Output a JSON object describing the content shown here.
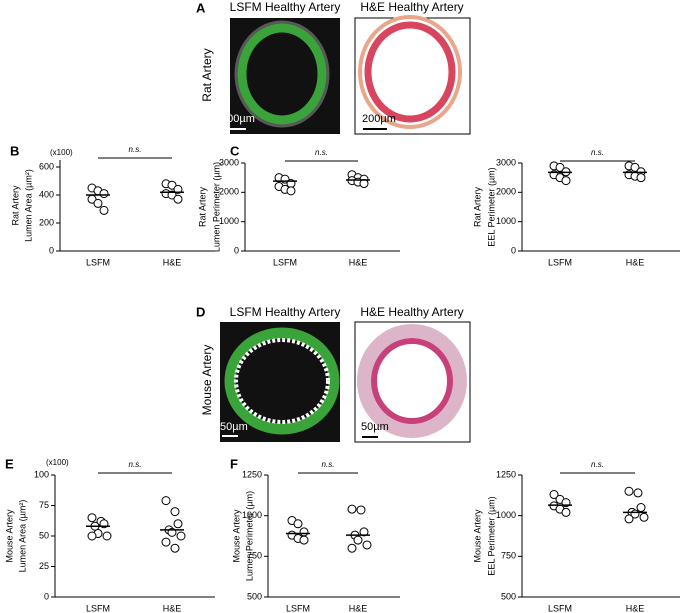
{
  "image_panels": [
    {
      "letter": "A",
      "row_label": "Rat Artery",
      "titles": [
        "LSFM Healthy Artery",
        "H&E Healthy Artery"
      ],
      "scale_bar": "200µm"
    },
    {
      "letter": "D",
      "row_label": "Mouse Artery",
      "titles": [
        "LSFM Healthy Artery",
        "H&E Healthy Artery"
      ],
      "scale_bar": "50µm"
    }
  ],
  "chart_data": [
    {
      "type": "dot",
      "panel": "B",
      "ylabel": [
        "Rat Artery",
        "Lumen Area (µm²)"
      ],
      "y_multiplier": "(x100)",
      "annotation": "n.s.",
      "categories": [
        "LSFM",
        "H&E"
      ],
      "groups": [
        {
          "values": [
            450,
            430,
            410,
            370,
            340,
            290
          ],
          "mean": 400
        },
        {
          "values": [
            480,
            470,
            440,
            410,
            400,
            370
          ],
          "mean": 420
        }
      ],
      "ylim": [
        0,
        650
      ],
      "yticks": [
        0,
        200,
        400,
        600
      ]
    },
    {
      "type": "dot",
      "panel": "C",
      "ylabel": [
        "Rat Artery",
        "Lumen Perimeter (µm)"
      ],
      "annotation": "n.s.",
      "categories": [
        "LSFM",
        "H&E"
      ],
      "groups": [
        {
          "values": [
            2500,
            2450,
            2300,
            2200,
            2100,
            2050
          ],
          "mean": 2380
        },
        {
          "values": [
            2600,
            2500,
            2450,
            2400,
            2350,
            2300
          ],
          "mean": 2420
        }
      ],
      "ylim": [
        0,
        3000
      ],
      "yticks": [
        0,
        1000,
        2000,
        3000
      ]
    },
    {
      "type": "dot",
      "ylabel": [
        "Rat Artery",
        "EEL Perimeter (µm)"
      ],
      "annotation": "n.s.",
      "categories": [
        "LSFM",
        "H&E"
      ],
      "groups": [
        {
          "values": [
            2900,
            2850,
            2700,
            2600,
            2500,
            2400
          ],
          "mean": 2680
        },
        {
          "values": [
            2900,
            2850,
            2700,
            2600,
            2550,
            2500
          ],
          "mean": 2680
        }
      ],
      "ylim": [
        0,
        3000
      ],
      "yticks": [
        0,
        1000,
        2000,
        3000
      ]
    },
    {
      "type": "dot",
      "panel": "E",
      "ylabel": [
        "Mouse Artery",
        "Lumen Area (µm²)"
      ],
      "y_multiplier": "(x100)",
      "annotation": "n.s.",
      "categories": [
        "LSFM",
        "H&E"
      ],
      "groups": [
        {
          "values": [
            65,
            62,
            60,
            58,
            52,
            50,
            50
          ],
          "mean": 58
        },
        {
          "values": [
            79,
            70,
            60,
            55,
            53,
            50,
            45,
            40
          ],
          "mean": 55
        }
      ],
      "ylim": [
        0,
        100
      ],
      "yticks": [
        0,
        25,
        50,
        75,
        100
      ]
    },
    {
      "type": "dot",
      "panel": "F",
      "ylabel": [
        "Mouse Artery",
        "Lumen Perimeter (µm)"
      ],
      "annotation": "n.s.",
      "categories": [
        "LSFM",
        "H&E"
      ],
      "groups": [
        {
          "values": [
            970,
            950,
            900,
            880,
            860,
            850
          ],
          "mean": 890
        },
        {
          "values": [
            1040,
            1035,
            900,
            880,
            850,
            820,
            800
          ],
          "mean": 880
        }
      ],
      "ylim": [
        500,
        1250
      ],
      "yticks": [
        500,
        750,
        1000,
        1250
      ]
    },
    {
      "type": "dot",
      "ylabel": [
        "Mouse Artery",
        "EEL Perimeter (µm)"
      ],
      "annotation": "n.s.",
      "categories": [
        "LSFM",
        "H&E"
      ],
      "groups": [
        {
          "values": [
            1130,
            1100,
            1080,
            1060,
            1040,
            1020
          ],
          "mean": 1065
        },
        {
          "values": [
            1150,
            1140,
            1050,
            1020,
            1010,
            990,
            980
          ],
          "mean": 1020
        }
      ],
      "ylim": [
        500,
        1250
      ],
      "yticks": [
        500,
        750,
        1000,
        1250
      ]
    }
  ]
}
